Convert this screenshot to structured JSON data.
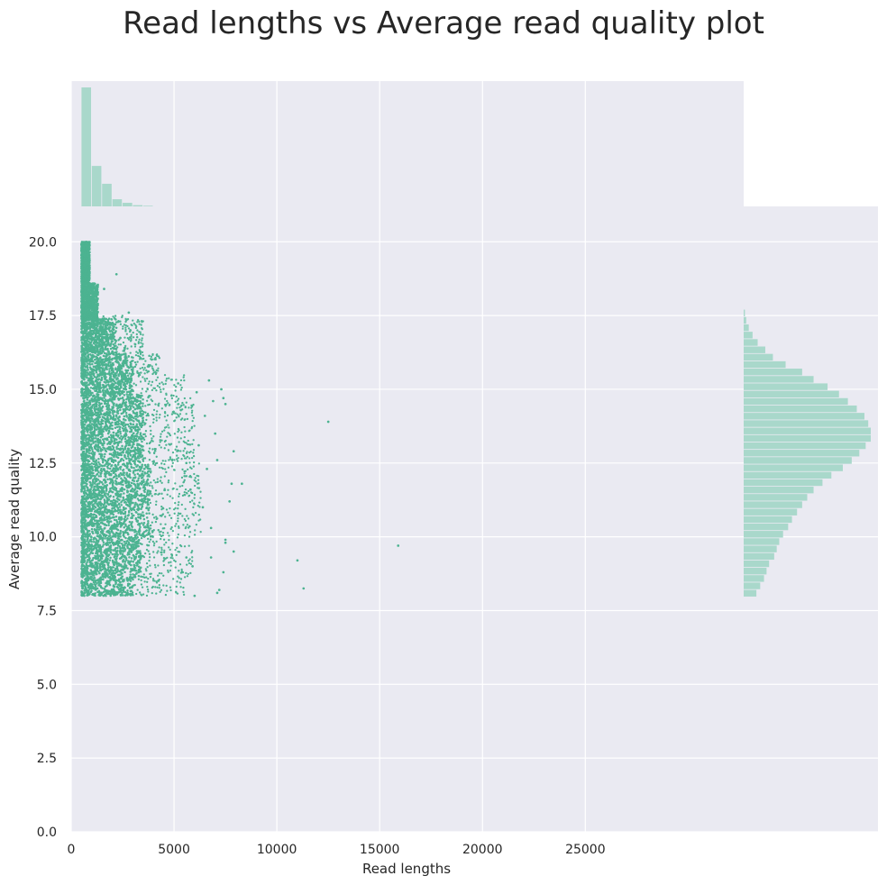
{
  "chart_data": {
    "type": "scatter",
    "title": "Read lengths vs Average read quality plot",
    "xlabel": "Read lengths",
    "ylabel": "Average read quality",
    "xlim": [
      0,
      32700
    ],
    "ylim": [
      0,
      21.2
    ],
    "x_ticks": [
      "0",
      "5000",
      "10000",
      "15000",
      "20000",
      "25000"
    ],
    "y_ticks": [
      "0.0",
      "2.5",
      "5.0",
      "7.5",
      "10.0",
      "12.5",
      "15.0",
      "17.5",
      "20.0"
    ],
    "grid": true,
    "colors": {
      "points": "#4cb391",
      "hist": "#a9d8cb",
      "background": "#eaeaf2",
      "grid": "#ffffff",
      "text": "#262626"
    },
    "main_cluster": {
      "x_min": 500,
      "x_max": 3500,
      "y_min": 8.0,
      "y_max": 20.0,
      "description": "dense cloud of reads"
    },
    "outliers": [
      {
        "x": 12500,
        "y": 13.9
      },
      {
        "x": 15900,
        "y": 9.7
      },
      {
        "x": 11000,
        "y": 9.2
      },
      {
        "x": 11300,
        "y": 8.25
      },
      {
        "x": 7400,
        "y": 8.8
      },
      {
        "x": 7900,
        "y": 9.5
      },
      {
        "x": 7500,
        "y": 9.9
      },
      {
        "x": 7800,
        "y": 11.8
      },
      {
        "x": 8300,
        "y": 11.8
      },
      {
        "x": 7700,
        "y": 11.2
      },
      {
        "x": 7900,
        "y": 12.9
      },
      {
        "x": 7400,
        "y": 14.7
      },
      {
        "x": 7500,
        "y": 14.5
      },
      {
        "x": 7300,
        "y": 15.0
      },
      {
        "x": 6700,
        "y": 15.3
      },
      {
        "x": 6100,
        "y": 14.9
      },
      {
        "x": 6500,
        "y": 14.1
      },
      {
        "x": 7200,
        "y": 8.2
      },
      {
        "x": 7100,
        "y": 8.1
      },
      {
        "x": 6000,
        "y": 8.0
      },
      {
        "x": 5600,
        "y": 9.3
      },
      {
        "x": 6800,
        "y": 9.3
      },
      {
        "x": 7500,
        "y": 9.8
      },
      {
        "x": 5900,
        "y": 9.0
      },
      {
        "x": 5200,
        "y": 15.2
      },
      {
        "x": 5600,
        "y": 12.5
      },
      {
        "x": 6600,
        "y": 12.3
      },
      {
        "x": 7100,
        "y": 12.6
      },
      {
        "x": 6400,
        "y": 11.0
      },
      {
        "x": 6800,
        "y": 10.3
      },
      {
        "x": 7000,
        "y": 13.5
      },
      {
        "x": 6200,
        "y": 13.1
      },
      {
        "x": 5800,
        "y": 11.6
      },
      {
        "x": 6900,
        "y": 14.6
      },
      {
        "x": 2200,
        "y": 18.9
      },
      {
        "x": 1600,
        "y": 18.4
      },
      {
        "x": 2800,
        "y": 17.6
      }
    ],
    "x_histogram": {
      "bin_edges": [
        500,
        1000,
        1500,
        2000,
        2500,
        3000,
        3500,
        4000
      ],
      "counts": [
        100,
        34,
        19,
        6,
        3,
        1,
        0.5
      ]
    },
    "y_histogram": {
      "bin_edges": [
        7.95,
        8.2,
        8.45,
        8.7,
        8.95,
        9.2,
        9.45,
        9.7,
        9.95,
        10.2,
        10.45,
        10.7,
        10.95,
        11.2,
        11.45,
        11.7,
        11.95,
        12.2,
        12.45,
        12.7,
        12.95,
        13.2,
        13.45,
        13.7,
        13.95,
        14.2,
        14.45,
        14.7,
        14.95,
        15.2,
        15.45,
        15.7,
        15.95,
        16.2,
        16.45,
        16.7,
        16.95,
        17.2,
        17.45,
        17.7
      ],
      "counts": [
        10,
        13,
        16,
        18,
        20,
        24,
        26,
        28,
        31,
        35,
        38,
        42,
        46,
        50,
        55,
        62,
        69,
        78,
        85,
        91,
        96,
        100,
        100,
        98,
        95,
        89,
        82,
        75,
        66,
        55,
        46,
        33,
        23,
        17,
        11,
        7,
        4,
        2,
        1
      ]
    }
  }
}
